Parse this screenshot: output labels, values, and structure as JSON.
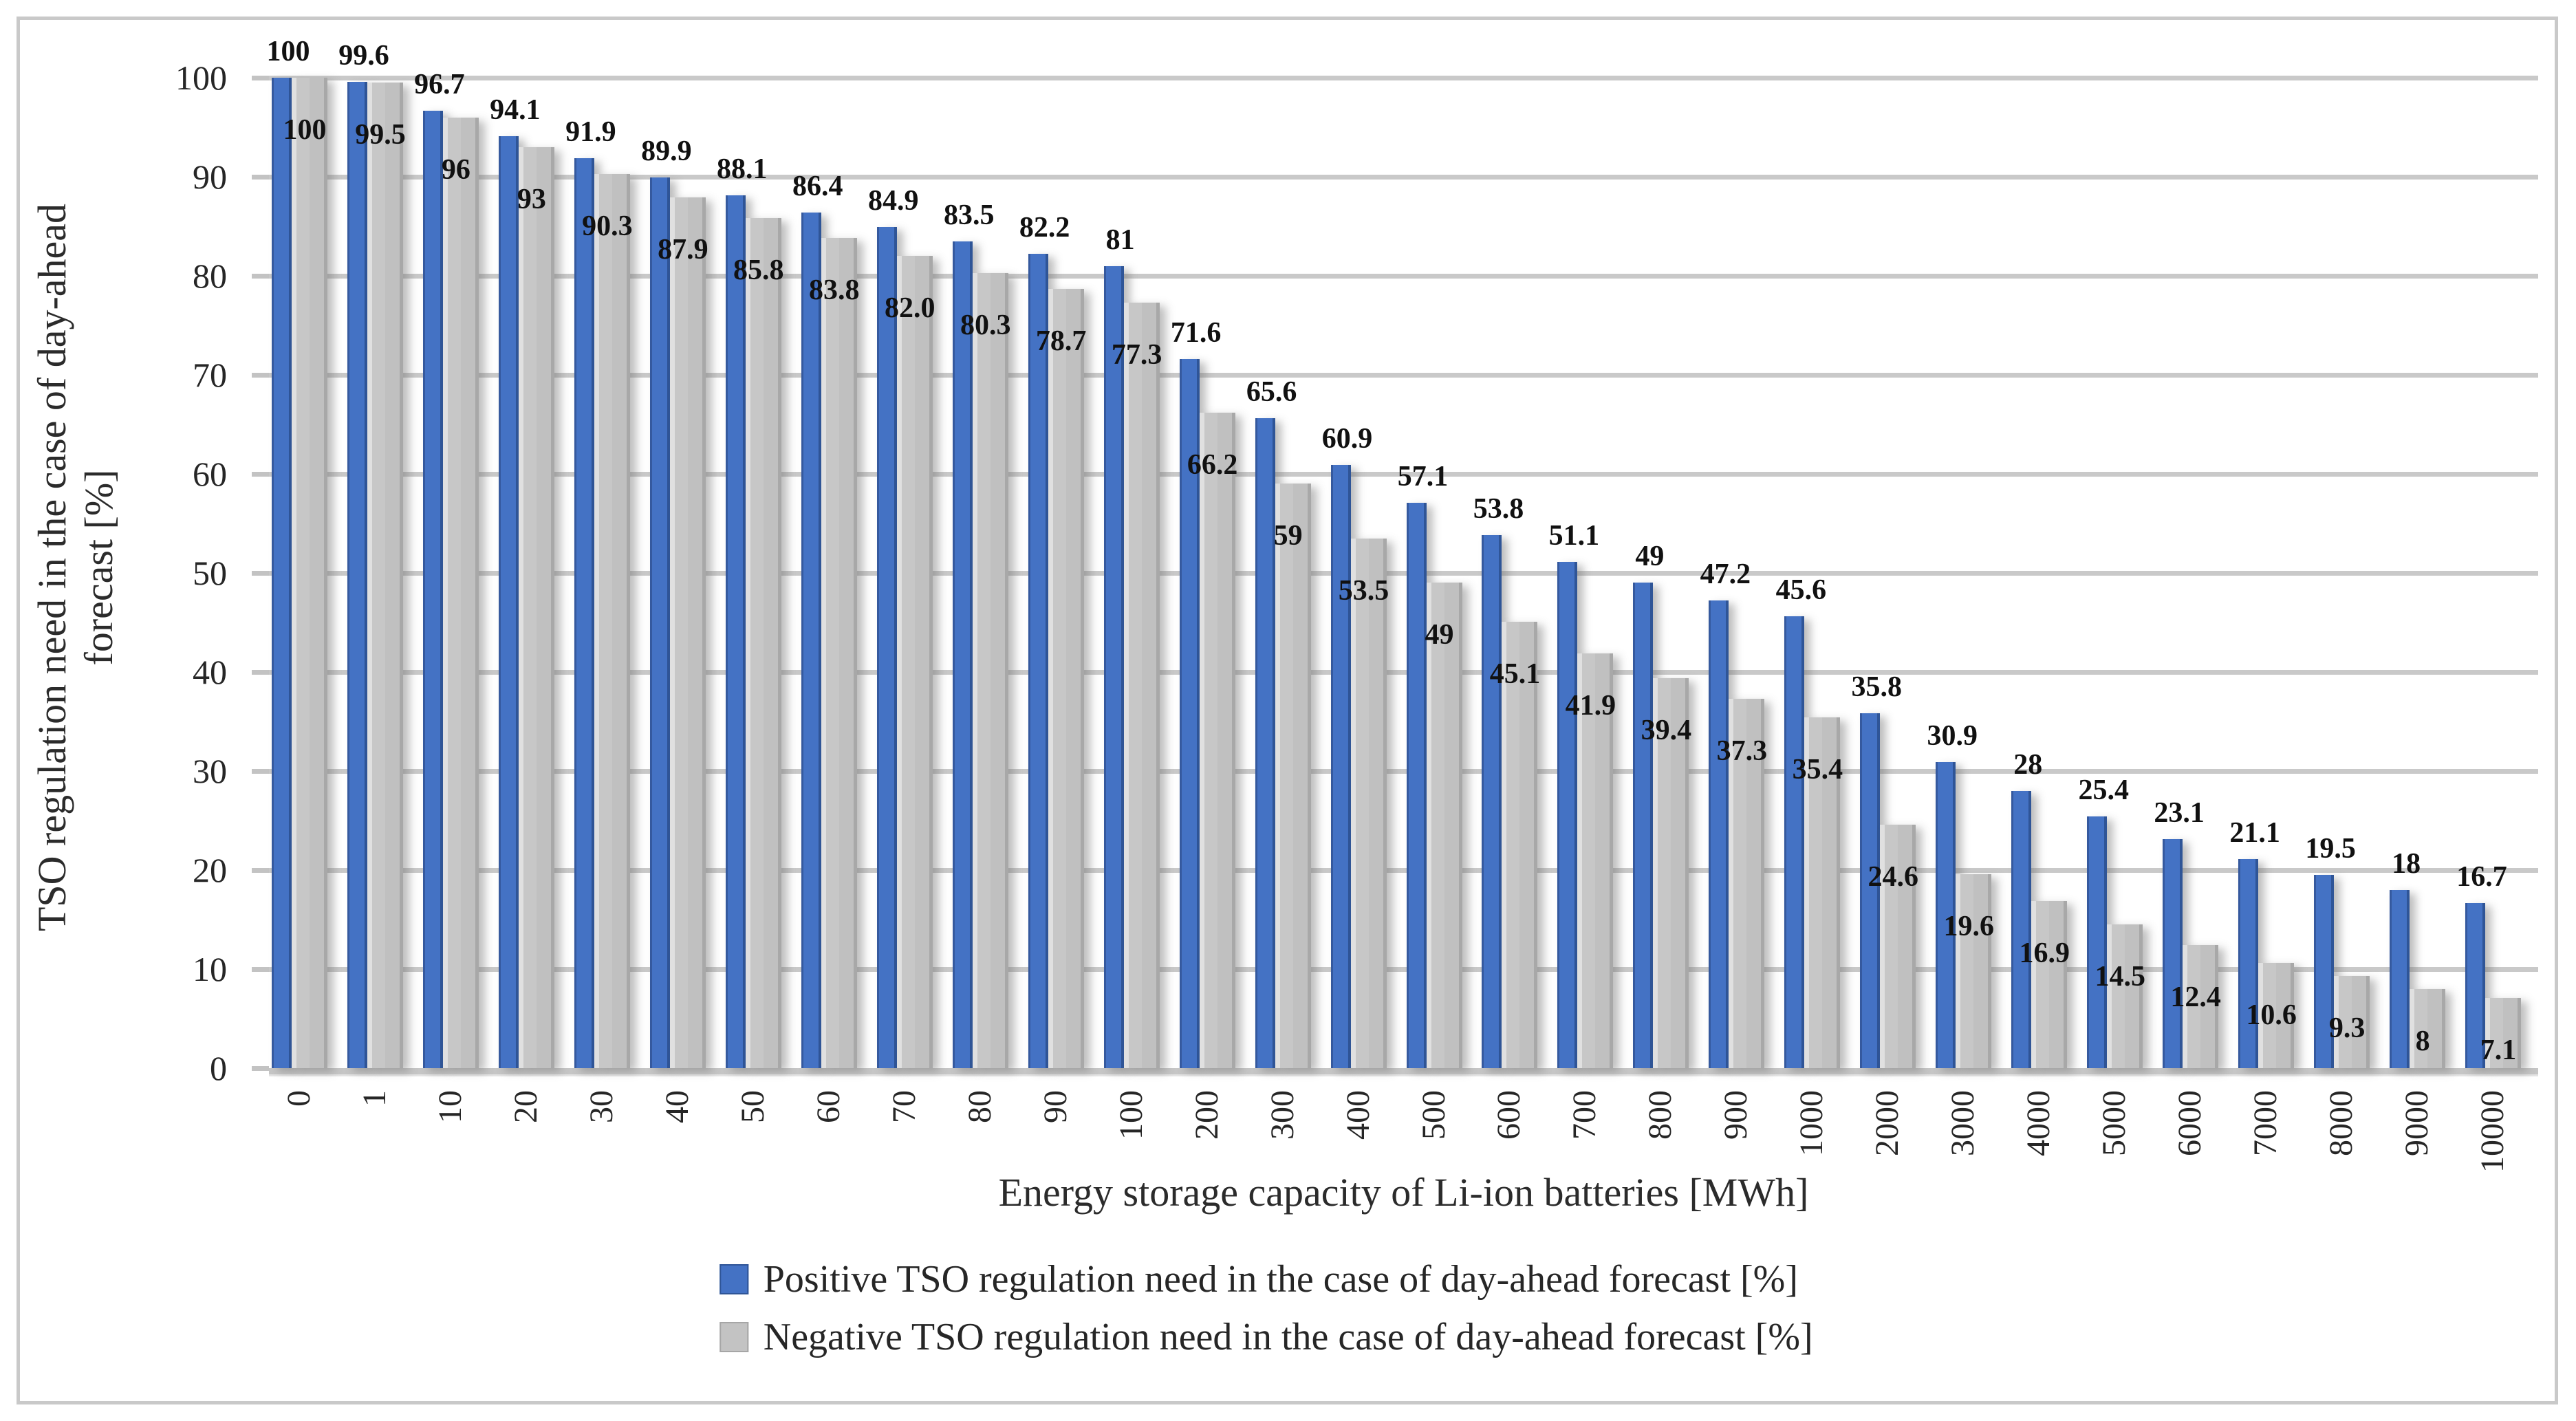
{
  "chart_data": {
    "type": "bar",
    "title": "",
    "xlabel": "Energy storage capacity of Li-ion batteries [MWh]",
    "ylabel": "TSO regulation need in the case of day-ahead forecast [%]",
    "ylabel_line1": "TSO regulation need in the case of day-ahead",
    "ylabel_line2": "forecast [%]",
    "ylim": [
      0,
      100
    ],
    "yticks": [
      0,
      10,
      20,
      30,
      40,
      50,
      60,
      70,
      80,
      90,
      100
    ],
    "grid": true,
    "legend_position": "bottom",
    "categories": [
      "0",
      "1",
      "10",
      "20",
      "30",
      "40",
      "50",
      "60",
      "70",
      "80",
      "90",
      "100",
      "200",
      "300",
      "400",
      "500",
      "600",
      "700",
      "800",
      "900",
      "1000",
      "2000",
      "3000",
      "4000",
      "5000",
      "6000",
      "7000",
      "8000",
      "9000",
      "10000"
    ],
    "series": [
      {
        "name": "Positive TSO regulation need in the case of day-ahead forecast [%]",
        "color": "#4472C4",
        "values": [
          100,
          99.6,
          96.7,
          94.1,
          91.9,
          89.9,
          88.1,
          86.4,
          84.9,
          83.5,
          82.2,
          81,
          71.6,
          65.6,
          60.9,
          57.1,
          53.8,
          51.1,
          49,
          47.2,
          45.6,
          35.8,
          30.9,
          28,
          25.4,
          23.1,
          21.1,
          19.5,
          18,
          16.7
        ],
        "labels": [
          "100",
          "99.6",
          "96.7",
          "94.1",
          "91.9",
          "89.9",
          "88.1",
          "86.4",
          "84.9",
          "83.5",
          "82.2",
          "81",
          "71.6",
          "65.6",
          "60.9",
          "57.1",
          "53.8",
          "51.1",
          "49",
          "47.2",
          "45.6",
          "35.8",
          "30.9",
          "28",
          "25.4",
          "23.1",
          "21.1",
          "19.5",
          "18",
          "16.7"
        ]
      },
      {
        "name": "Negative TSO regulation need in the case of day-ahead forecast [%]",
        "color": "#C3C3C3",
        "values": [
          100,
          99.5,
          96,
          93,
          90.3,
          87.9,
          85.8,
          83.8,
          82.0,
          80.3,
          78.7,
          77.3,
          66.2,
          59,
          53.5,
          49,
          45.1,
          41.9,
          39.4,
          37.3,
          35.4,
          24.6,
          19.6,
          16.9,
          14.5,
          12.4,
          10.6,
          9.3,
          8,
          7.1
        ],
        "labels": [
          "100",
          "99.5",
          "96",
          "93",
          "90.3",
          "87.9",
          "85.8",
          "83.8",
          "82.0",
          "80.3",
          "78.7",
          "77.3",
          "66.2",
          "59",
          "53.5",
          "49",
          "45.1",
          "41.9",
          "39.4",
          "37.3",
          "35.4",
          "24.6",
          "19.6",
          "16.9",
          "14.5",
          "12.4",
          "10.6",
          "9.3",
          "8",
          "7.1"
        ]
      }
    ]
  },
  "colors": {
    "positive_bar": "#4472C4",
    "negative_bar": "#C3C3C3",
    "gridline": "#C9C9C9",
    "chart_border": "#C9C9C9",
    "text": "#262626"
  }
}
